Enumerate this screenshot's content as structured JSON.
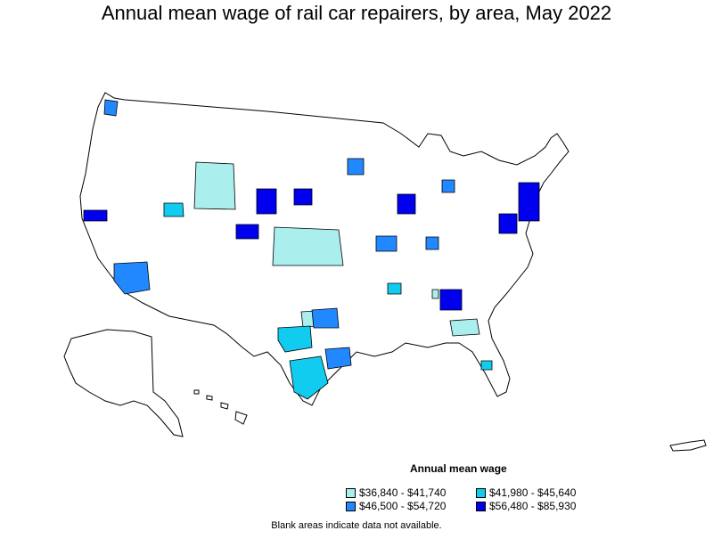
{
  "map": {
    "title": "Annual mean wage of rail car repairers, by area, May 2022",
    "legend": {
      "title": "Annual mean wage",
      "items": [
        {
          "label": "$36,840 - $41,740",
          "color": "#aaeeee"
        },
        {
          "label": "$41,980 - $45,640",
          "color": "#11ccee"
        },
        {
          "label": "$46,500 - $54,720",
          "color": "#2288ff"
        },
        {
          "label": "$56,480 - $85,930",
          "color": "#0000ee"
        }
      ]
    },
    "footnote": "Blank areas indicate data not available.",
    "colors": {
      "tier1": "#aaeeee",
      "tier2": "#11ccee",
      "tier3": "#2288ff",
      "tier4": "#0000ee",
      "blank": "#ffffff",
      "border": "#000000"
    }
  }
}
